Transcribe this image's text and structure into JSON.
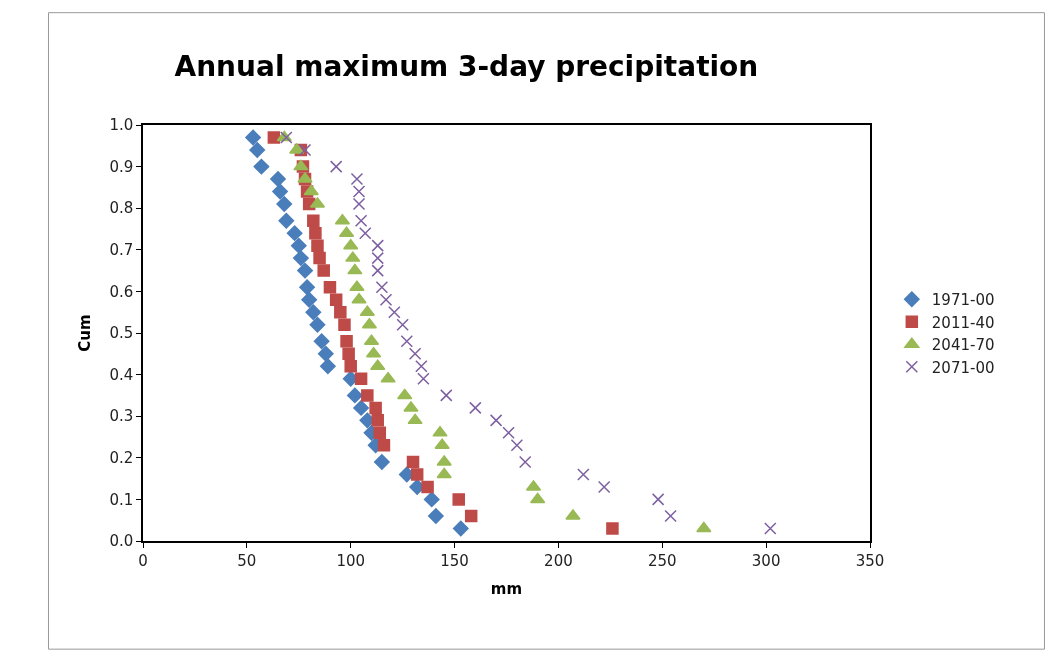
{
  "chart_data": {
    "type": "scatter",
    "title": "Annual maximum 3-day precipitation",
    "xlabel": "mm",
    "ylabel": "Cum",
    "xlim": [
      0,
      350
    ],
    "xticks": [
      0,
      50,
      100,
      150,
      200,
      250,
      300,
      350
    ],
    "ylim": [
      0,
      1
    ],
    "yticks": [
      {
        "value": 0,
        "label": "0.0"
      },
      0.1,
      0.2,
      0.3,
      0.4,
      0.5,
      0.6,
      0.7,
      0.8,
      0.9,
      {
        "value": 1,
        "label": "1.0"
      }
    ],
    "legend": "right",
    "series": [
      {
        "name": "1971-00",
        "color": "#4a7ebb",
        "marker": "diamond",
        "x": [
          153,
          141,
          139,
          132,
          127,
          115,
          112,
          110,
          108,
          105,
          102,
          100,
          89,
          88,
          86,
          84,
          82,
          80,
          79,
          78,
          76,
          75,
          73,
          69,
          68,
          66,
          65,
          57,
          55,
          53
        ],
        "values": [
          0.03,
          0.06,
          0.1,
          0.13,
          0.16,
          0.19,
          0.23,
          0.26,
          0.29,
          0.32,
          0.35,
          0.39,
          0.42,
          0.45,
          0.48,
          0.52,
          0.55,
          0.58,
          0.61,
          0.65,
          0.68,
          0.71,
          0.74,
          0.77,
          0.81,
          0.84,
          0.87,
          0.9,
          0.94,
          0.97
        ]
      },
      {
        "name": "2011-40",
        "color": "#be4b48",
        "marker": "square",
        "x": [
          226,
          158,
          152,
          137,
          132,
          130,
          116,
          114,
          113,
          112,
          108,
          105,
          100,
          99,
          98,
          97,
          95,
          93,
          90,
          87,
          85,
          84,
          83,
          82,
          80,
          79,
          78,
          77,
          76,
          63
        ],
        "values": [
          0.03,
          0.06,
          0.1,
          0.13,
          0.16,
          0.19,
          0.23,
          0.26,
          0.29,
          0.32,
          0.35,
          0.39,
          0.42,
          0.45,
          0.48,
          0.52,
          0.55,
          0.58,
          0.61,
          0.65,
          0.68,
          0.71,
          0.74,
          0.77,
          0.81,
          0.84,
          0.87,
          0.9,
          0.94,
          0.97
        ]
      },
      {
        "name": "2041-70",
        "color": "#98b954",
        "marker": "triangle",
        "x": [
          270,
          207,
          190,
          188,
          145,
          145,
          144,
          143,
          131,
          129,
          126,
          118,
          113,
          111,
          110,
          109,
          108,
          104,
          103,
          102,
          101,
          100,
          98,
          96,
          84,
          81,
          78,
          76,
          74,
          68
        ],
        "values": [
          0.03,
          0.06,
          0.1,
          0.13,
          0.16,
          0.19,
          0.23,
          0.26,
          0.29,
          0.32,
          0.35,
          0.39,
          0.42,
          0.45,
          0.48,
          0.52,
          0.55,
          0.58,
          0.61,
          0.65,
          0.68,
          0.71,
          0.74,
          0.77,
          0.81,
          0.84,
          0.87,
          0.9,
          0.94,
          0.97
        ]
      },
      {
        "name": "2071-00",
        "color": "#7d60a0",
        "marker": "cross",
        "x": [
          302,
          254,
          248,
          222,
          212,
          184,
          180,
          176,
          170,
          160,
          146,
          135,
          134,
          131,
          127,
          125,
          121,
          117,
          115,
          113,
          113,
          113,
          107,
          105,
          104,
          104,
          103,
          93,
          78,
          69
        ],
        "values": [
          0.03,
          0.06,
          0.1,
          0.13,
          0.16,
          0.19,
          0.23,
          0.26,
          0.29,
          0.32,
          0.35,
          0.39,
          0.42,
          0.45,
          0.48,
          0.52,
          0.55,
          0.58,
          0.61,
          0.65,
          0.68,
          0.71,
          0.74,
          0.77,
          0.81,
          0.84,
          0.87,
          0.9,
          0.94,
          0.97
        ]
      }
    ]
  }
}
